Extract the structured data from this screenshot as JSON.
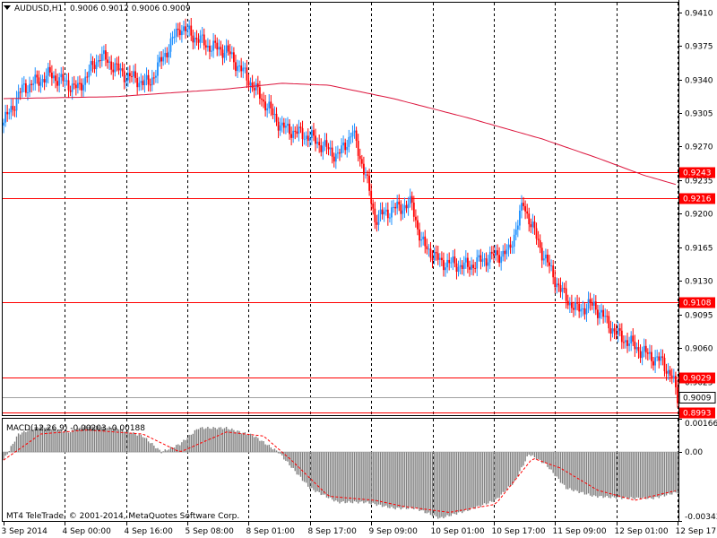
{
  "header": {
    "symbol_tf": "AUDUSD,H1",
    "ohlc": "0.9006 0.9012 0.9006 0.9009",
    "copyright": "MT4 TeleTrade, © 2001-2014, MetaQuotes Software Corp."
  },
  "chart_data": [
    {
      "type": "candlestick",
      "title": "AUDUSD,H1",
      "ylim": [
        0.899,
        0.942
      ],
      "y_ticks": [
        "0.9410",
        "0.9375",
        "0.9340",
        "0.9305",
        "0.9270",
        "0.9235",
        "0.9200",
        "0.9165",
        "0.9130",
        "0.9095",
        "0.9060",
        "0.9025"
      ],
      "x_tick_labels": [
        "3 Sep 2014",
        "4 Sep 00:00",
        "4 Sep 16:00",
        "5 Sep 08:00",
        "8 Sep 01:00",
        "8 Sep 17:00",
        "9 Sep 09:00",
        "10 Sep 01:00",
        "10 Sep 17:00",
        "11 Sep 09:00",
        "12 Sep 01:00",
        "12 Sep 17:00"
      ],
      "current_price": "0.9009",
      "levels": [
        {
          "label": "0.9243",
          "value": 0.9243
        },
        {
          "label": "0.9216",
          "value": 0.9216
        },
        {
          "label": "0.9108",
          "value": 0.9108
        },
        {
          "label": "0.9029",
          "value": 0.9029
        },
        {
          "label": "0.8993",
          "value": 0.8993
        }
      ],
      "close_anchors": [
        [
          0,
          0.9295
        ],
        [
          10,
          0.933
        ],
        [
          25,
          0.9345
        ],
        [
          40,
          0.933
        ],
        [
          52,
          0.9365
        ],
        [
          65,
          0.9345
        ],
        [
          78,
          0.9335
        ],
        [
          95,
          0.9395
        ],
        [
          110,
          0.9375
        ],
        [
          120,
          0.937
        ],
        [
          130,
          0.9345
        ],
        [
          150,
          0.929
        ],
        [
          165,
          0.928
        ],
        [
          180,
          0.926
        ],
        [
          188,
          0.9285
        ],
        [
          195,
          0.924
        ],
        [
          200,
          0.9195
        ],
        [
          210,
          0.9205
        ],
        [
          220,
          0.921
        ],
        [
          225,
          0.917
        ],
        [
          235,
          0.915
        ],
        [
          250,
          0.9145
        ],
        [
          262,
          0.9155
        ],
        [
          272,
          0.916
        ],
        [
          280,
          0.921
        ],
        [
          290,
          0.916
        ],
        [
          300,
          0.912
        ],
        [
          308,
          0.91
        ],
        [
          318,
          0.9105
        ],
        [
          330,
          0.9075
        ],
        [
          345,
          0.9055
        ],
        [
          355,
          0.9045
        ],
        [
          360,
          0.903
        ],
        [
          363,
          0.9008
        ]
      ],
      "ma_anchors": [
        [
          0,
          0.932
        ],
        [
          60,
          0.9322
        ],
        [
          120,
          0.933
        ],
        [
          150,
          0.9336
        ],
        [
          175,
          0.9334
        ],
        [
          210,
          0.932
        ],
        [
          250,
          0.93
        ],
        [
          290,
          0.9278
        ],
        [
          320,
          0.9258
        ],
        [
          345,
          0.924
        ],
        [
          363,
          0.923
        ]
      ]
    },
    {
      "type": "histogram",
      "title": "MACD(12,26,9)",
      "indicator_label": "MACD(12,26,9) -0.00203 -0.00188",
      "ylim": [
        -0.00343,
        0.00166
      ],
      "y_ticks": [
        "0.00166",
        "0.00",
        "-0.00343"
      ],
      "macd_anchors": [
        [
          0,
          -0.0004
        ],
        [
          8,
          0.0009
        ],
        [
          20,
          0.0013
        ],
        [
          35,
          0.001
        ],
        [
          45,
          0.0013
        ],
        [
          60,
          0.0012
        ],
        [
          75,
          0.0008
        ],
        [
          85,
          0.0
        ],
        [
          95,
          0.0004
        ],
        [
          105,
          0.0012
        ],
        [
          120,
          0.0012
        ],
        [
          135,
          0.0008
        ],
        [
          148,
          0.0
        ],
        [
          165,
          -0.0018
        ],
        [
          180,
          -0.0025
        ],
        [
          195,
          -0.0025
        ],
        [
          210,
          -0.0028
        ],
        [
          222,
          -0.0028
        ],
        [
          235,
          -0.0033
        ],
        [
          250,
          -0.0029
        ],
        [
          265,
          -0.0024
        ],
        [
          275,
          -0.0015
        ],
        [
          283,
          -0.0001
        ],
        [
          292,
          -0.0006
        ],
        [
          303,
          -0.0018
        ],
        [
          318,
          -0.0022
        ],
        [
          335,
          -0.0023
        ],
        [
          350,
          -0.0023
        ],
        [
          363,
          -0.002
        ]
      ],
      "signal_anchors": [
        [
          0,
          -0.0004
        ],
        [
          20,
          0.0009
        ],
        [
          45,
          0.0011
        ],
        [
          75,
          0.0009
        ],
        [
          95,
          0.0
        ],
        [
          120,
          0.001
        ],
        [
          140,
          0.0008
        ],
        [
          155,
          -0.0004
        ],
        [
          175,
          -0.0022
        ],
        [
          200,
          -0.0024
        ],
        [
          215,
          -0.0027
        ],
        [
          240,
          -0.003
        ],
        [
          265,
          -0.0026
        ],
        [
          285,
          -0.0003
        ],
        [
          300,
          -0.0008
        ],
        [
          320,
          -0.0019
        ],
        [
          340,
          -0.0024
        ],
        [
          363,
          -0.0019
        ]
      ]
    }
  ],
  "colors": {
    "bull": "#1e90ff",
    "bear": "#ff0000",
    "ma": "#dc143c",
    "level": "#ff0000",
    "grid": "#000000",
    "macd_bar": "#808080",
    "signal": "#ff0000"
  }
}
